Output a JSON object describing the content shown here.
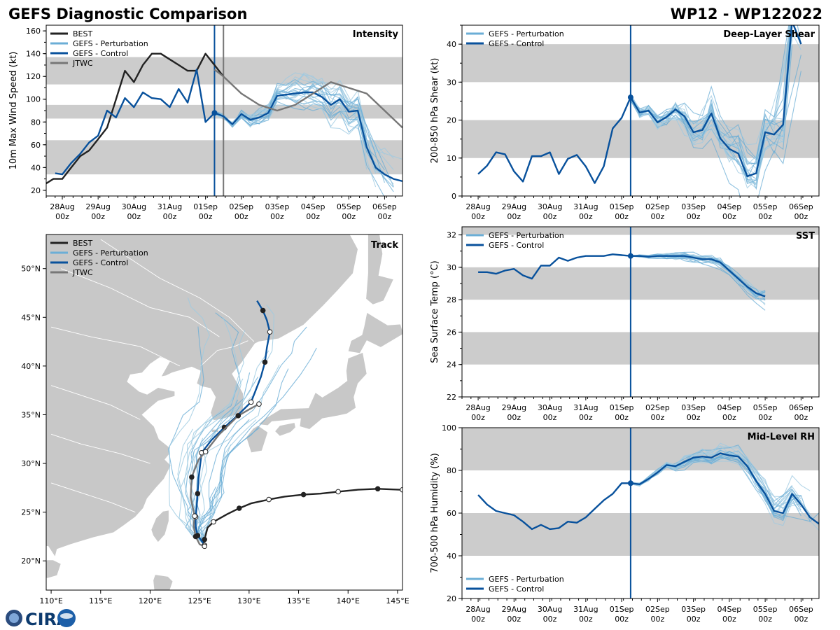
{
  "header": {
    "title": "GEFS Diagnostic Comparison",
    "storm_id": "WP12 - WP122022"
  },
  "colors": {
    "best": "#222222",
    "perturbation": "#6baed6",
    "perturbation_light": "#9ecae1",
    "control": "#08519c",
    "jtwc": "#777777",
    "band": "#cccccc",
    "land": "#c8c8c8"
  },
  "time_axis": {
    "ticks": [
      "28Aug\n00z",
      "29Aug\n00z",
      "30Aug\n00z",
      "31Aug\n00z",
      "01Sep\n00z",
      "02Sep\n00z",
      "03Sep\n00z",
      "04Sep\n00z",
      "05Sep\n00z",
      "06Sep\n00z"
    ],
    "tick_days": [
      0,
      1,
      2,
      3,
      4,
      5,
      6,
      7,
      8,
      9
    ],
    "xlim": [
      -0.45,
      9.5
    ],
    "init_day": 4.25
  },
  "chart_data": [
    {
      "id": "intensity",
      "type": "line",
      "title": "Intensity",
      "ylabel": "10m Max Wind Speed (kt)",
      "ylim": [
        15,
        165
      ],
      "yticks": [
        20,
        40,
        60,
        80,
        100,
        120,
        140,
        160
      ],
      "bands": [
        [
          34,
          64
        ],
        [
          83,
          95
        ],
        [
          113,
          137
        ]
      ],
      "vlines": [
        {
          "x": 4.25,
          "color": "#08519c"
        },
        {
          "x": 4.5,
          "color": "#777777"
        }
      ],
      "legend": [
        "BEST",
        "GEFS - Perturbation",
        "GEFS - Control",
        "JTWC"
      ],
      "series": [
        {
          "name": "BEST",
          "x": [
            -0.5,
            -0.25,
            0,
            0.25,
            0.5,
            0.75,
            1,
            1.25,
            1.5,
            1.75,
            2,
            2.25,
            2.5,
            2.75,
            3,
            3.25,
            3.5,
            3.75,
            4,
            4.25,
            4.5
          ],
          "values": [
            25,
            30,
            30,
            40,
            50,
            55,
            65,
            75,
            100,
            125,
            115,
            130,
            140,
            140,
            135,
            130,
            125,
            125,
            140,
            130,
            120
          ]
        },
        {
          "name": "GEFS - Control",
          "x": [
            -0.2,
            0,
            0.25,
            0.5,
            0.75,
            1,
            1.25,
            1.5,
            1.75,
            2,
            2.25,
            2.5,
            2.75,
            3,
            3.25,
            3.5,
            3.75,
            4,
            4.25,
            4.5,
            4.75,
            5,
            5.25,
            5.5,
            5.75,
            6,
            6.25,
            6.5,
            6.75,
            7,
            7.25,
            7.5,
            7.75,
            8,
            8.25,
            8.5,
            8.75,
            9,
            9.25,
            9.5
          ],
          "values": [
            35,
            34,
            44,
            52,
            62,
            68,
            90,
            84,
            101,
            93,
            106,
            101,
            100,
            93,
            109,
            97,
            126,
            80,
            88,
            85,
            78,
            87,
            82,
            84,
            88,
            103,
            104,
            105,
            106,
            106,
            102,
            95,
            100,
            89,
            90,
            58,
            40,
            34,
            30,
            28
          ]
        },
        {
          "name": "JTWC",
          "x": [
            4.25,
            4.5,
            5,
            5.5,
            6,
            6.5,
            7,
            7.5,
            8,
            8.5,
            9,
            9.5
          ],
          "values": [
            126,
            120,
            105,
            95,
            90,
            95,
            105,
            115,
            110,
            105,
            90,
            75
          ]
        }
      ]
    },
    {
      "id": "shear",
      "type": "line",
      "title": "Deep-Layer Shear",
      "ylabel": "200-850 hPa Shear (kt)",
      "ylim": [
        0,
        45
      ],
      "yticks": [
        0,
        10,
        20,
        30,
        40
      ],
      "bands": [
        [
          10,
          20
        ],
        [
          30,
          40
        ]
      ],
      "vlines": [
        {
          "x": 4.25,
          "color": "#08519c"
        }
      ],
      "legend": [
        "GEFS - Perturbation",
        "GEFS - Control"
      ],
      "series": [
        {
          "name": "GEFS - Control",
          "x": [
            0,
            0.25,
            0.5,
            0.75,
            1,
            1.25,
            1.5,
            1.75,
            2,
            2.25,
            2.5,
            2.75,
            3,
            3.25,
            3.5,
            3.75,
            4,
            4.25,
            4.5,
            4.75,
            5,
            5.25,
            5.5,
            5.75,
            6,
            6.25,
            6.5,
            6.75,
            7,
            7.25,
            7.5,
            7.75,
            8,
            8.25,
            8.5,
            8.75,
            9
          ],
          "values": [
            5.8,
            8,
            11.5,
            11,
            6.5,
            3.8,
            10.5,
            10.5,
            11.5,
            5.8,
            9.8,
            10.8,
            7.8,
            3.4,
            7.8,
            17.8,
            20.6,
            26,
            22,
            22.5,
            19.4,
            20.8,
            22.8,
            21,
            16.8,
            17.4,
            21.8,
            15.2,
            12.4,
            11.2,
            5.2,
            6,
            16.8,
            16.2,
            18.8,
            46,
            40
          ]
        }
      ]
    },
    {
      "id": "sst",
      "type": "line",
      "title": "SST",
      "ylabel": "Sea Surface Temp (°C)",
      "ylim": [
        22,
        32.5
      ],
      "yticks": [
        22,
        24,
        26,
        28,
        30,
        32
      ],
      "bands": [
        [
          24,
          26
        ],
        [
          28,
          30
        ],
        [
          32,
          32.5
        ]
      ],
      "vlines": [
        {
          "x": 4.25,
          "color": "#08519c"
        }
      ],
      "legend": [
        "GEFS - Perturbation",
        "GEFS - Control"
      ],
      "series": [
        {
          "name": "GEFS - Control",
          "x": [
            0,
            0.25,
            0.5,
            0.75,
            1,
            1.25,
            1.5,
            1.75,
            2,
            2.25,
            2.5,
            2.75,
            3,
            3.25,
            3.5,
            3.75,
            4,
            4.25,
            4.5,
            4.75,
            5,
            5.25,
            5.5,
            5.75,
            6,
            6.25,
            6.5,
            6.75,
            7,
            7.25,
            7.5,
            7.75,
            8
          ],
          "values": [
            29.7,
            29.7,
            29.6,
            29.8,
            29.9,
            29.5,
            29.3,
            30.1,
            30.1,
            30.6,
            30.4,
            30.6,
            30.7,
            30.7,
            30.7,
            30.8,
            30.75,
            30.7,
            30.7,
            30.65,
            30.7,
            30.7,
            30.7,
            30.7,
            30.6,
            30.5,
            30.5,
            30.3,
            29.8,
            29.3,
            28.8,
            28.4,
            28.2
          ]
        }
      ]
    },
    {
      "id": "rh",
      "type": "line",
      "title": "Mid-Level RH",
      "ylabel": "700-500 hPa Humidity (%)",
      "ylim": [
        20,
        100
      ],
      "yticks": [
        20,
        40,
        60,
        80,
        100
      ],
      "bands": [
        [
          40,
          60
        ],
        [
          80,
          100
        ]
      ],
      "vlines": [
        {
          "x": 4.25,
          "color": "#08519c"
        }
      ],
      "legend": [
        "GEFS - Perturbation",
        "GEFS - Control"
      ],
      "series": [
        {
          "name": "GEFS - Control",
          "x": [
            0,
            0.25,
            0.5,
            0.75,
            1,
            1.25,
            1.5,
            1.75,
            2,
            2.25,
            2.5,
            2.75,
            3,
            3.25,
            3.5,
            3.75,
            4,
            4.25,
            4.5,
            4.75,
            5,
            5.25,
            5.5,
            5.75,
            6,
            6.25,
            6.5,
            6.75,
            7,
            7.25,
            7.5,
            7.75,
            8,
            8.25,
            8.5,
            8.75,
            9,
            9.25,
            9.5
          ],
          "values": [
            68.5,
            64,
            61,
            60,
            59,
            56,
            52.5,
            54.5,
            52.5,
            53,
            56,
            55.5,
            58,
            62,
            66,
            69,
            74,
            74,
            73.5,
            76,
            79,
            82.5,
            82,
            84,
            86,
            86.5,
            86,
            88,
            87,
            86.5,
            82,
            75,
            69,
            61,
            60,
            69,
            64,
            58,
            55
          ]
        }
      ]
    },
    {
      "id": "track",
      "type": "line",
      "title": "Track",
      "xlim": [
        109.5,
        145.5
      ],
      "ylim": [
        17,
        53.5
      ],
      "xticks": [
        110,
        115,
        120,
        125,
        130,
        135,
        140,
        145
      ],
      "xtick_labels": [
        "110°E",
        "115°E",
        "120°E",
        "125°E",
        "130°E",
        "135°E",
        "140°E",
        "145°E"
      ],
      "yticks": [
        20,
        25,
        30,
        35,
        40,
        45,
        50
      ],
      "ytick_labels": [
        "20°N",
        "25°N",
        "30°N",
        "35°N",
        "40°N",
        "45°N",
        "50°N"
      ],
      "legend": [
        "BEST",
        "GEFS - Perturbation",
        "GEFS - Control",
        "JTWC"
      ],
      "series": [
        {
          "name": "BEST",
          "lon": [
            145.5,
            145.2,
            143,
            141,
            139,
            137.2,
            135.5,
            133.6,
            132,
            130.2,
            129,
            127.8,
            126.4,
            125.8,
            125.5,
            125.3
          ],
          "lat": [
            27.3,
            27.3,
            27.4,
            27.3,
            27.1,
            26.9,
            26.8,
            26.6,
            26.3,
            25.9,
            25.4,
            24.8,
            24,
            23.4,
            22.2,
            21.4
          ]
        },
        {
          "name": "GEFS - Control",
          "lon": [
            125.5,
            125.1,
            124.8,
            124.6,
            124.6,
            124.7,
            124.8,
            124.9,
            125.2,
            126.2,
            127.5,
            128.8,
            130.2,
            131.2,
            131.6,
            131.8,
            132.1,
            131.8,
            131.4,
            130.8
          ],
          "lat": [
            21.6,
            22.2,
            22.6,
            23.5,
            24.5,
            25.5,
            26.9,
            28.5,
            31.1,
            32.4,
            33.7,
            34.9,
            36.3,
            38.9,
            40.4,
            41.9,
            43.5,
            44.7,
            45.7,
            46.7
          ]
        },
        {
          "name": "JTWC",
          "lon": [
            125.5,
            125.0,
            124.6,
            124.4,
            124.5,
            124.1,
            124.2,
            124.9,
            125.6,
            127.0,
            128.9,
            130.1,
            131.0
          ],
          "lat": [
            21.5,
            21.7,
            22.5,
            23.6,
            24.6,
            26.5,
            28.6,
            30.4,
            31.2,
            33.0,
            34.9,
            35.6,
            36.1
          ]
        }
      ]
    }
  ],
  "logo": {
    "text": "CIRA"
  }
}
